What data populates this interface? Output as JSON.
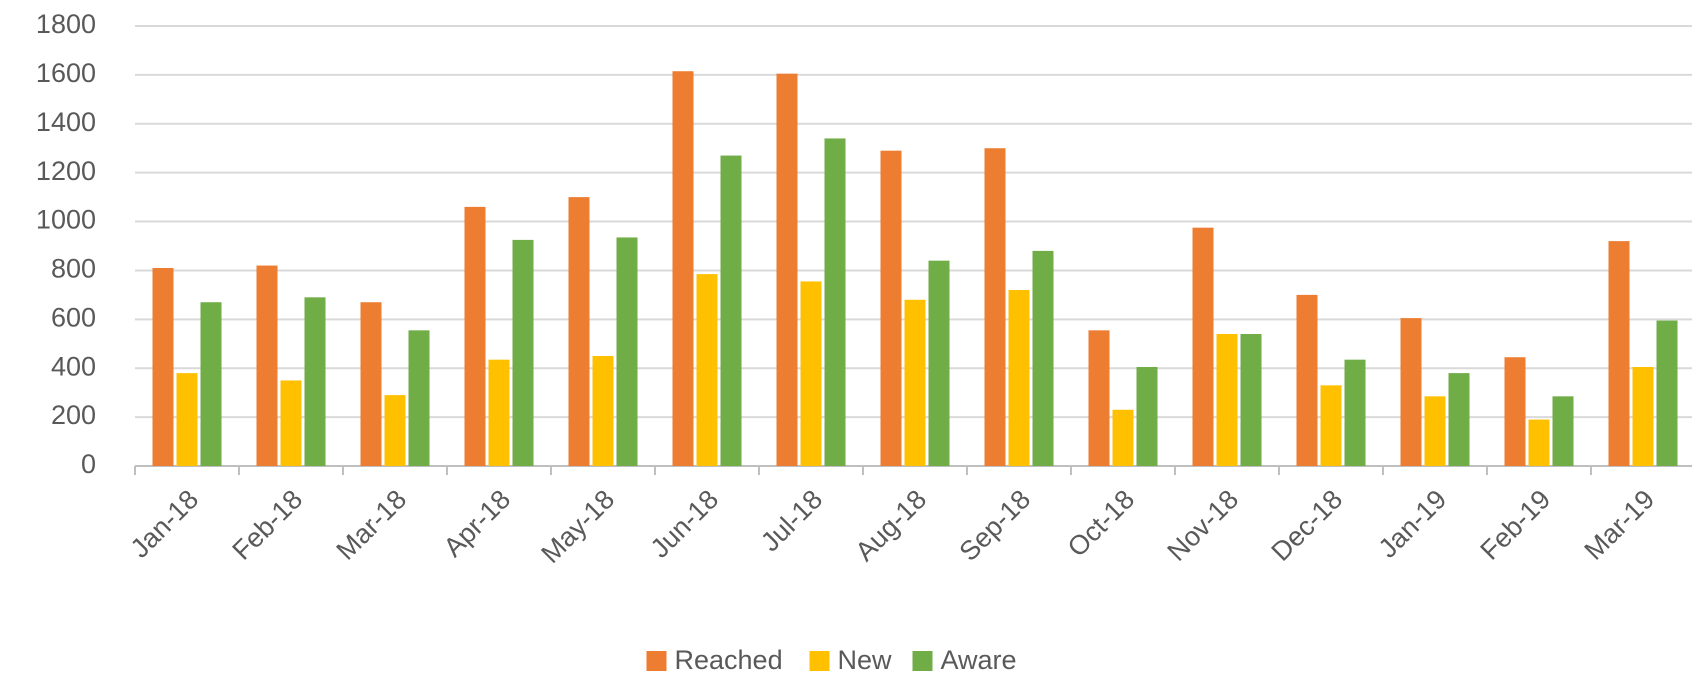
{
  "chart_data": {
    "type": "bar",
    "categories": [
      "Jan-18",
      "Feb-18",
      "Mar-18",
      "Apr-18",
      "May-18",
      "Jun-18",
      "Jul-18",
      "Aug-18",
      "Sep-18",
      "Oct-18",
      "Nov-18",
      "Dec-18",
      "Jan-19",
      "Feb-19",
      "Mar-19"
    ],
    "series": [
      {
        "name": "Reached",
        "color": "#ed7d31",
        "values": [
          810,
          820,
          670,
          1060,
          1100,
          1615,
          1605,
          1290,
          1300,
          555,
          975,
          700,
          605,
          445,
          920
        ]
      },
      {
        "name": "New",
        "color": "#ffc000",
        "values": [
          380,
          350,
          290,
          435,
          450,
          785,
          755,
          680,
          720,
          230,
          540,
          330,
          285,
          190,
          405
        ]
      },
      {
        "name": "Aware",
        "color": "#70ad47",
        "values": [
          670,
          690,
          555,
          925,
          935,
          1270,
          1340,
          840,
          880,
          405,
          540,
          435,
          380,
          285,
          595
        ]
      }
    ],
    "ylim": [
      0,
      1800
    ],
    "yticks": [
      0,
      200,
      400,
      600,
      800,
      1000,
      1200,
      1400,
      1600,
      1800
    ],
    "grid": true,
    "legend": "bottom"
  }
}
